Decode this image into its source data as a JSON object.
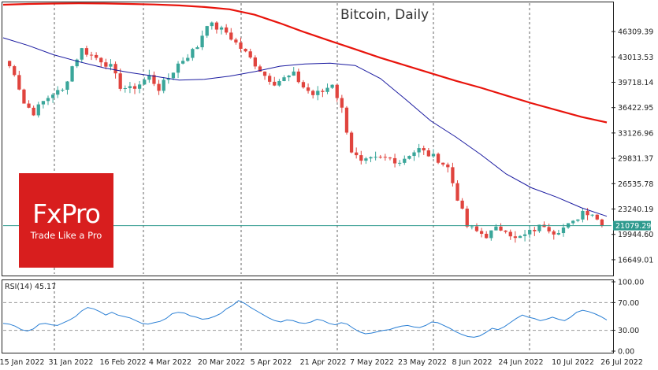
{
  "chart_data": [
    {
      "type": "candlestick",
      "title": "Bitcoin, Daily",
      "xlabel": "",
      "ylabel": "",
      "ylim": [
        14800,
        50000
      ],
      "y_ticks": [
        "46309.39",
        "43013.53",
        "39718.14",
        "36422.95",
        "33126.96",
        "29831.37",
        "26535.78",
        "23240.19",
        "19944.60",
        "16649.01"
      ],
      "last_price_label": "21079.29",
      "last_price": 21079.29,
      "x_labels": [
        "15 Jan 2022",
        "31 Jan 2022",
        "16 Feb 2022",
        "4 Mar 2022",
        "20 Mar 2022",
        "5 Apr 2022",
        "21 Apr 2022",
        "7 May 2022",
        "23 May 2022",
        "8 Jun 2022",
        "24 Jun 2022",
        "10 Jul 2022",
        "26 Jul 2022"
      ],
      "series": [
        {
          "name": "",
          "kind": "moving_average",
          "color": "#e8140c",
          "values": [
            49800,
            49900,
            49950,
            49980,
            49960,
            49900,
            49830,
            49700,
            49500,
            49200,
            48500,
            47400,
            46200,
            45100,
            44000,
            42900,
            41900,
            40900,
            39900,
            39000,
            38000,
            37000,
            36100,
            35200,
            34500
          ]
        },
        {
          "name": "",
          "kind": "moving_average",
          "color": "#1a1aa0",
          "values": [
            45500,
            44500,
            43300,
            42400,
            41600,
            41000,
            40500,
            40000,
            40100,
            40500,
            41100,
            41800,
            42100,
            42200,
            41900,
            40200,
            37500,
            34700,
            32600,
            30300,
            27800,
            26000,
            24800,
            23400,
            22300
          ]
        }
      ],
      "ohlc_close_path": [
        42500,
        41000,
        37000,
        35800,
        37200,
        38300,
        38600,
        41800,
        44000,
        43200,
        42600,
        41700,
        39200,
        38800,
        39500,
        40500,
        38900,
        40300,
        42100,
        43200,
        44400,
        47400,
        46800,
        46200,
        44800,
        43500,
        42100,
        40600,
        39700,
        40200,
        40700,
        39100,
        38100,
        38500,
        39600,
        36200,
        30800,
        29200,
        29600,
        29800,
        29800,
        29400,
        30400,
        31000,
        30300,
        29700,
        28600,
        24700,
        21000,
        20300,
        19800,
        20600,
        20700,
        19300,
        19800,
        20600,
        21200,
        20300,
        20800,
        21400,
        23000,
        22700,
        21079
      ]
    },
    {
      "type": "line",
      "title": "",
      "label": "RSI(14) 45.17",
      "ylim": [
        0,
        100
      ],
      "y_ticks": [
        "100.00",
        "70.00",
        "30.00",
        "0.00"
      ],
      "levels": [
        30,
        70
      ],
      "series": [
        {
          "name": "",
          "color": "#2a7fd4",
          "values": [
            40,
            39,
            36,
            31,
            29,
            32,
            39,
            40,
            38,
            37,
            41,
            45,
            50,
            58,
            63,
            61,
            57,
            52,
            56,
            52,
            50,
            48,
            44,
            40,
            39,
            41,
            43,
            47,
            54,
            56,
            55,
            51,
            49,
            46,
            47,
            50,
            54,
            61,
            66,
            73,
            69,
            63,
            58,
            53,
            48,
            44,
            42,
            45,
            44,
            41,
            40,
            42,
            46,
            44,
            40,
            38,
            41,
            39,
            33,
            28,
            25,
            26,
            28,
            30,
            31,
            34,
            36,
            37,
            35,
            34,
            37,
            42,
            41,
            37,
            33,
            28,
            24,
            21,
            20,
            22,
            27,
            33,
            31,
            35,
            41,
            47,
            52,
            49,
            47,
            44,
            46,
            49,
            46,
            44,
            49,
            56,
            59,
            57,
            54,
            50,
            45
          ]
        }
      ]
    }
  ],
  "logo": {
    "text": "FxPro",
    "tagline": "Trade Like a Pro"
  },
  "colors": {
    "bull": "#3aa69a",
    "bear": "#e0443e",
    "price_line": "#2e9a8e",
    "grid": "#666666"
  }
}
